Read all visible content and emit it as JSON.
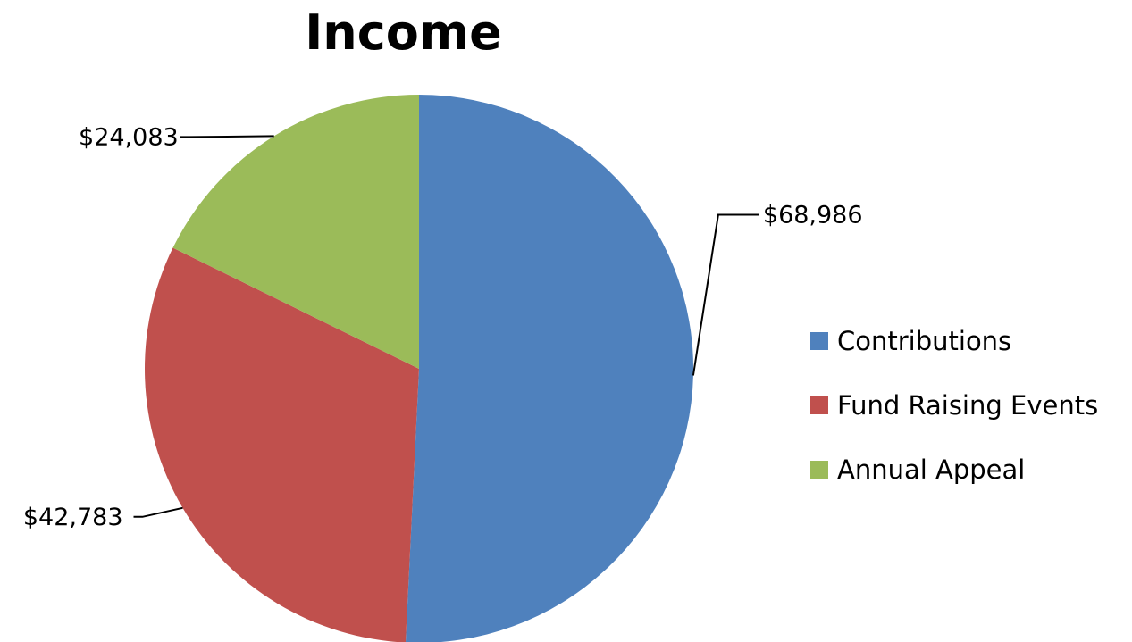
{
  "chart_data": {
    "type": "pie",
    "title": "Income",
    "categories": [
      "Contributions",
      "Fund Raising Events",
      "Annual Appeal"
    ],
    "values": [
      68986,
      42783,
      24083
    ],
    "value_labels": [
      "$68,986",
      "$42,783",
      "$24,083"
    ],
    "colors": [
      "#4f81bd",
      "#c0504d",
      "#9bbb59"
    ],
    "start_angle_deg": 0,
    "direction": "clockwise",
    "legend_position": "right"
  }
}
